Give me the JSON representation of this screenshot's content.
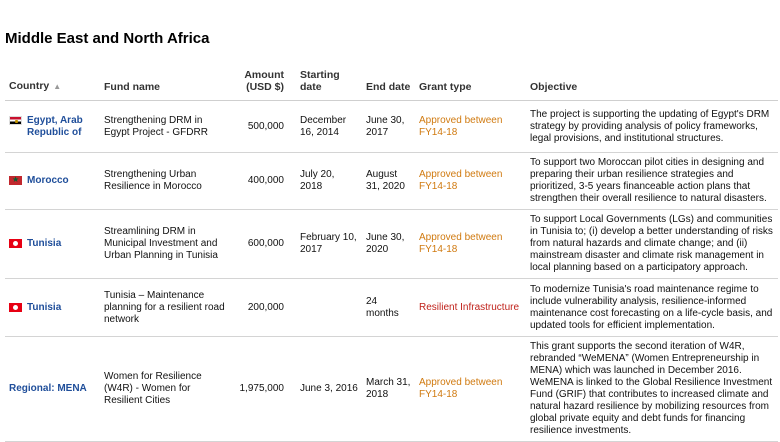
{
  "page": {
    "title": "Middle East and North Africa"
  },
  "table": {
    "headers": {
      "country": "Country",
      "fund": "Fund name",
      "amount": "Amount (USD $)",
      "start": "Starting date",
      "end": "End date",
      "grant": "Grant type",
      "objective": "Objective"
    },
    "rows": [
      {
        "country": "Egypt, Arab Republic of",
        "flag": "egypt-flag-icon",
        "fund": "Strengthening DRM in Egypt Project - GFDRR",
        "amount": "500,000",
        "start": "December 16, 2014",
        "end": "June 30, 2017",
        "grant": "Approved between FY14-18",
        "grant_type": "approved",
        "objective": "The project is supporting the updating of Egypt's DRM strategy by providing analysis of policy frameworks, legal provisions, and institutional structures."
      },
      {
        "country": "Morocco",
        "flag": "morocco-flag-icon",
        "fund": "Strengthening Urban Resilience in Morocco",
        "amount": "400,000",
        "start": "July 20, 2018",
        "end": "August 31, 2020",
        "grant": "Approved between FY14-18",
        "grant_type": "approved",
        "objective": "To support two Moroccan pilot cities in designing and preparing their urban resilience strategies and prioritized, 3-5 years financeable action plans that strengthen their overall resilience to natural disasters."
      },
      {
        "country": "Tunisia",
        "flag": "tunisia-flag-icon",
        "fund": "Streamlining DRM in Municipal Investment and Urban Planning in Tunisia",
        "amount": "600,000",
        "start": "February 10, 2017",
        "end": "June 30, 2020",
        "grant": "Approved between FY14-18",
        "grant_type": "approved",
        "objective": "To support Local Governments (LGs) and communities in Tunisia to; (i) develop a better understanding of risks from natural hazards and climate change; and (ii) mainstream disaster and climate risk management in local planning based on a participatory approach."
      },
      {
        "country": "Tunisia",
        "flag": "tunisia-flag-icon",
        "fund": "Tunisia – Maintenance planning for a resilient road network",
        "amount": "200,000",
        "start": "",
        "end": "24 months",
        "grant": "Resilient Infrastructure",
        "grant_type": "resilient",
        "objective": "To modernize Tunisia's road maintenance regime to include vulnerability analysis, resilience-informed maintenance cost forecasting on a life-cycle basis, and updated tools for efficient implementation."
      },
      {
        "country": "Regional: MENA",
        "flag": "",
        "fund": "Women for Resilience (W4R) - Women for Resilient Cities",
        "amount": "1,975,000",
        "start": "June 3, 2016",
        "end": "March 31, 2018",
        "grant": "Approved between FY14-18",
        "grant_type": "approved",
        "objective": "This grant supports the second iteration of W4R, rebranded “WeMENA” (Women Entrepreneurship in MENA) which was launched in December 2016. WeMENA is linked to the Global Resilience Investment Fund (GRIF) that contributes to increased climate and natural hazard resilience by mobilizing resources from global private equity and debt funds for financing resilience investments."
      }
    ]
  },
  "colors": {
    "country_link": "#1f4e9a",
    "approved": "#d07a10",
    "resilient": "#c0221b"
  }
}
